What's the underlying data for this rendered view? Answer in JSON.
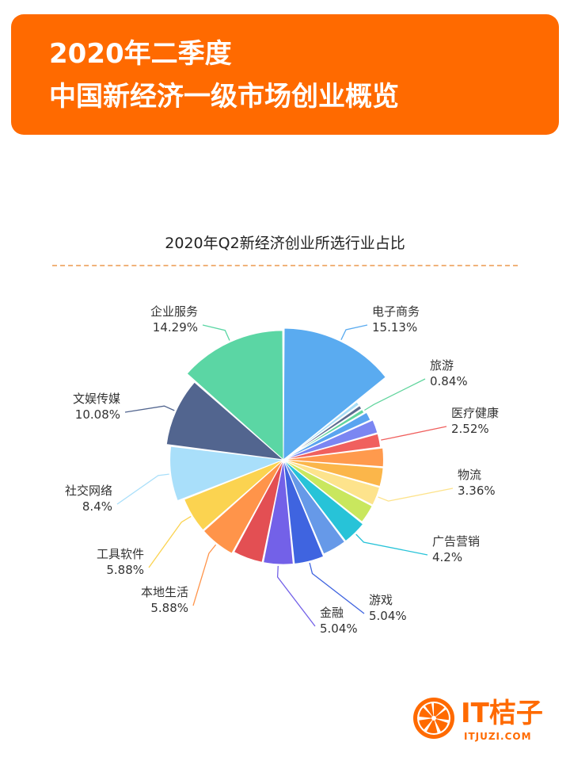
{
  "header": {
    "title_line1": "2020年二季度",
    "title_line2": "中国新经济一级市场创业概览"
  },
  "colors": {
    "banner": "#ff6a00",
    "rule": "#f0b27a",
    "text": "#333333"
  },
  "chart_data": {
    "type": "pie",
    "title": "2020年Q2新经济创业所选行业占比",
    "start_angle_deg": 0,
    "direction": "clockwise",
    "rose_by_value": true,
    "slices": [
      {
        "name": "电子商务",
        "value": 15.13,
        "display": "15.13%",
        "color": "#5aabf0",
        "labeled": true
      },
      {
        "name": "",
        "value": 0.84,
        "display": "",
        "color": "#a9def7",
        "labeled": false
      },
      {
        "name": "",
        "value": 0.84,
        "display": "",
        "color": "#5c6c8f",
        "labeled": false
      },
      {
        "name": "旅游",
        "value": 0.84,
        "display": "0.84%",
        "color": "#62d59e",
        "labeled": true
      },
      {
        "name": "",
        "value": 1.68,
        "display": "",
        "color": "#5aa4f0",
        "labeled": false
      },
      {
        "name": "",
        "value": 2.52,
        "display": "",
        "color": "#7b86f2",
        "labeled": false
      },
      {
        "name": "医疗健康",
        "value": 2.52,
        "display": "2.52%",
        "color": "#f0605e",
        "labeled": true
      },
      {
        "name": "",
        "value": 3.36,
        "display": "",
        "color": "#ff9a4d",
        "labeled": false
      },
      {
        "name": "",
        "value": 3.36,
        "display": "",
        "color": "#fbb64a",
        "labeled": false
      },
      {
        "name": "物流",
        "value": 3.36,
        "display": "3.36%",
        "color": "#fde38c",
        "labeled": true
      },
      {
        "name": "",
        "value": 3.36,
        "display": "",
        "color": "#c9e75e",
        "labeled": false
      },
      {
        "name": "广告营销",
        "value": 4.2,
        "display": "4.2%",
        "color": "#27c3d8",
        "labeled": true
      },
      {
        "name": "",
        "value": 4.2,
        "display": "",
        "color": "#6699e8",
        "labeled": false
      },
      {
        "name": "游戏",
        "value": 5.04,
        "display": "5.04%",
        "color": "#3f64e0",
        "labeled": true
      },
      {
        "name": "金融",
        "value": 5.04,
        "display": "5.04%",
        "color": "#7361e8",
        "labeled": true
      },
      {
        "name": "",
        "value": 5.04,
        "display": "",
        "color": "#e34f53",
        "labeled": false
      },
      {
        "name": "本地生活",
        "value": 5.88,
        "display": "5.88%",
        "color": "#ff944a",
        "labeled": true
      },
      {
        "name": "工具软件",
        "value": 5.88,
        "display": "5.88%",
        "color": "#fbd350",
        "labeled": true
      },
      {
        "name": "社交网络",
        "value": 8.4,
        "display": "8.4%",
        "color": "#a9dffa",
        "labeled": true
      },
      {
        "name": "文娱传媒",
        "value": 10.08,
        "display": "10.08%",
        "color": "#52658f",
        "labeled": true
      },
      {
        "name": "企业服务",
        "value": 14.29,
        "display": "14.29%",
        "color": "#5bd6a4",
        "labeled": true
      }
    ]
  },
  "logo": {
    "text": "IT桔子",
    "url": "ITJUZI.COM"
  }
}
